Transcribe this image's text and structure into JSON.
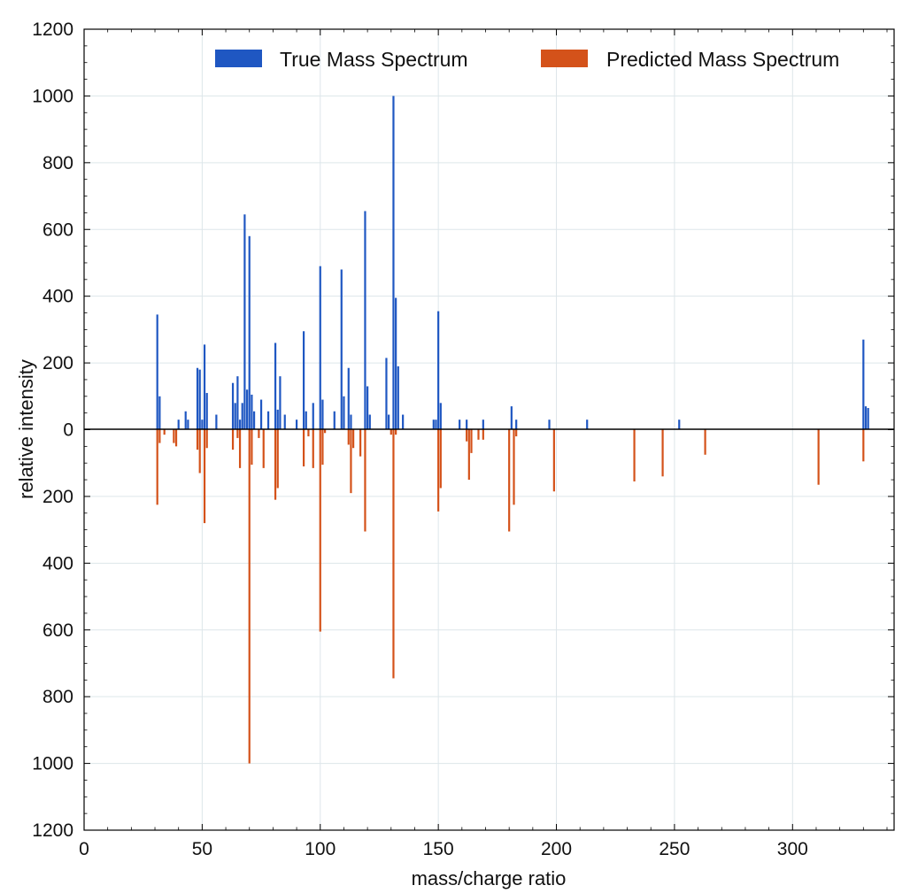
{
  "chart_data": {
    "type": "bar",
    "xlabel": "mass/charge ratio",
    "ylabel": "relative intensity",
    "xlim": [
      0,
      343
    ],
    "ylim": [
      -1200,
      1200
    ],
    "x_ticks": [
      0,
      50,
      100,
      150,
      200,
      250,
      300
    ],
    "y_ticks": [
      -1200,
      -1000,
      -800,
      -600,
      -400,
      -200,
      0,
      200,
      400,
      600,
      800,
      1000,
      1200
    ],
    "y_tick_labels": [
      "1200",
      "1000",
      "800",
      "600",
      "400",
      "200",
      "0",
      "200",
      "400",
      "600",
      "800",
      "1000",
      "1200"
    ],
    "grid": true,
    "legend_position": "top-right",
    "colors": {
      "true": "#1f57c2",
      "predicted": "#d4521a",
      "grid": "#dde6ea",
      "baseline": "#000000"
    },
    "series": [
      {
        "name": "True Mass Spectrum",
        "direction": "up",
        "x": [
          31,
          32,
          40,
          43,
          44,
          48,
          49,
          50,
          51,
          52,
          56,
          63,
          64,
          65,
          66,
          67,
          68,
          69,
          70,
          71,
          72,
          75,
          78,
          81,
          82,
          83,
          85,
          90,
          93,
          94,
          97,
          100,
          101,
          106,
          109,
          110,
          112,
          113,
          119,
          120,
          121,
          128,
          129,
          131,
          132,
          133,
          135,
          148,
          149,
          150,
          151,
          159,
          162,
          169,
          181,
          183,
          197,
          213,
          252,
          330,
          331,
          332
        ],
        "values": [
          345,
          100,
          30,
          55,
          30,
          185,
          180,
          30,
          255,
          110,
          45,
          140,
          80,
          160,
          30,
          80,
          645,
          120,
          580,
          105,
          55,
          90,
          55,
          260,
          60,
          160,
          45,
          30,
          295,
          55,
          80,
          490,
          90,
          55,
          480,
          100,
          185,
          45,
          655,
          130,
          45,
          215,
          45,
          1000,
          395,
          190,
          45,
          30,
          30,
          355,
          80,
          30,
          30,
          30,
          70,
          30,
          30,
          30,
          30,
          270,
          70,
          65
        ]
      },
      {
        "name": "Predicted Mass Spectrum",
        "direction": "down",
        "x": [
          31,
          32,
          34,
          38,
          39,
          48,
          49,
          51,
          52,
          63,
          65,
          66,
          70,
          71,
          74,
          76,
          81,
          82,
          93,
          95,
          97,
          100,
          101,
          102,
          112,
          113,
          114,
          117,
          119,
          130,
          131,
          132,
          150,
          151,
          162,
          163,
          164,
          167,
          169,
          180,
          182,
          183,
          199,
          233,
          245,
          263,
          311,
          330
        ],
        "values": [
          225,
          40,
          15,
          40,
          50,
          60,
          130,
          280,
          55,
          60,
          25,
          115,
          1000,
          105,
          25,
          115,
          210,
          175,
          110,
          20,
          115,
          605,
          105,
          10,
          45,
          190,
          55,
          80,
          305,
          15,
          745,
          15,
          245,
          175,
          35,
          150,
          70,
          30,
          30,
          305,
          225,
          20,
          185,
          155,
          140,
          75,
          165,
          95
        ]
      }
    ]
  }
}
